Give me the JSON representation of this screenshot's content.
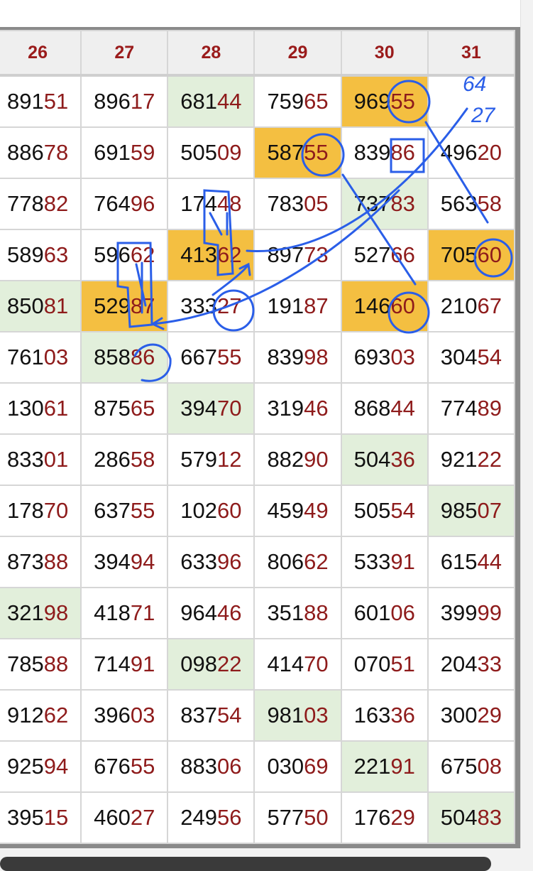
{
  "columns": [
    "26",
    "27",
    "28",
    "29",
    "30",
    "31"
  ],
  "rows": [
    [
      {
        "v": "89151"
      },
      {
        "v": "89617"
      },
      {
        "v": "68144",
        "bg": "green"
      },
      {
        "v": "75965"
      },
      {
        "v": "96955",
        "bg": "orange"
      },
      {
        "v": ""
      }
    ],
    [
      {
        "v": "88678"
      },
      {
        "v": "69159"
      },
      {
        "v": "50509"
      },
      {
        "v": "58755",
        "bg": "orange"
      },
      {
        "v": "83986"
      },
      {
        "v": "49620"
      }
    ],
    [
      {
        "v": "77882"
      },
      {
        "v": "76496"
      },
      {
        "v": "17448"
      },
      {
        "v": "78305"
      },
      {
        "v": "73783",
        "bg": "green"
      },
      {
        "v": "56358"
      }
    ],
    [
      {
        "v": "58963"
      },
      {
        "v": "59662"
      },
      {
        "v": "41362",
        "bg": "orange"
      },
      {
        "v": "89773"
      },
      {
        "v": "52766"
      },
      {
        "v": "70560",
        "bg": "orange"
      }
    ],
    [
      {
        "v": "85081",
        "bg": "green"
      },
      {
        "v": "52987",
        "bg": "orange"
      },
      {
        "v": "33327"
      },
      {
        "v": "19187"
      },
      {
        "v": "14660",
        "bg": "orange"
      },
      {
        "v": "21067"
      }
    ],
    [
      {
        "v": "76103"
      },
      {
        "v": "85886",
        "bg": "green"
      },
      {
        "v": "66755"
      },
      {
        "v": "83998"
      },
      {
        "v": "69303"
      },
      {
        "v": "30454"
      }
    ],
    [
      {
        "v": "13061"
      },
      {
        "v": "87565"
      },
      {
        "v": "39470",
        "bg": "green"
      },
      {
        "v": "31946"
      },
      {
        "v": "86844"
      },
      {
        "v": "77489"
      }
    ],
    [
      {
        "v": "83301"
      },
      {
        "v": "28658"
      },
      {
        "v": "57912"
      },
      {
        "v": "88290"
      },
      {
        "v": "50436",
        "bg": "green"
      },
      {
        "v": "92122"
      }
    ],
    [
      {
        "v": "17870"
      },
      {
        "v": "63755"
      },
      {
        "v": "10260"
      },
      {
        "v": "45949"
      },
      {
        "v": "50554"
      },
      {
        "v": "98507",
        "bg": "green"
      }
    ],
    [
      {
        "v": "87388"
      },
      {
        "v": "39494"
      },
      {
        "v": "63396"
      },
      {
        "v": "80662"
      },
      {
        "v": "53391"
      },
      {
        "v": "61544"
      }
    ],
    [
      {
        "v": "32198",
        "bg": "green"
      },
      {
        "v": "41871"
      },
      {
        "v": "96446"
      },
      {
        "v": "35188"
      },
      {
        "v": "60106"
      },
      {
        "v": "39999"
      }
    ],
    [
      {
        "v": "78588"
      },
      {
        "v": "71491"
      },
      {
        "v": "09822",
        "bg": "green"
      },
      {
        "v": "41470"
      },
      {
        "v": "07051"
      },
      {
        "v": "20433"
      }
    ],
    [
      {
        "v": "91262"
      },
      {
        "v": "39603"
      },
      {
        "v": "83754"
      },
      {
        "v": "98103",
        "bg": "green"
      },
      {
        "v": "16336"
      },
      {
        "v": "30029"
      }
    ],
    [
      {
        "v": "92594"
      },
      {
        "v": "67655"
      },
      {
        "v": "88306"
      },
      {
        "v": "03069"
      },
      {
        "v": "22191",
        "bg": "green"
      },
      {
        "v": "67508"
      }
    ],
    [
      {
        "v": "39515"
      },
      {
        "v": "46027"
      },
      {
        "v": "24956"
      },
      {
        "v": "57750"
      },
      {
        "v": "17629"
      },
      {
        "v": "50483",
        "bg": "green"
      }
    ]
  ],
  "annotations": {
    "note_top": "64",
    "note_bottom": "27"
  },
  "colors": {
    "header_text": "#9a1b1b",
    "digit_highlight": "#8e1b1b",
    "green": "#e2efdb",
    "orange": "#f4bf41",
    "ink": "#2a5ee8"
  }
}
